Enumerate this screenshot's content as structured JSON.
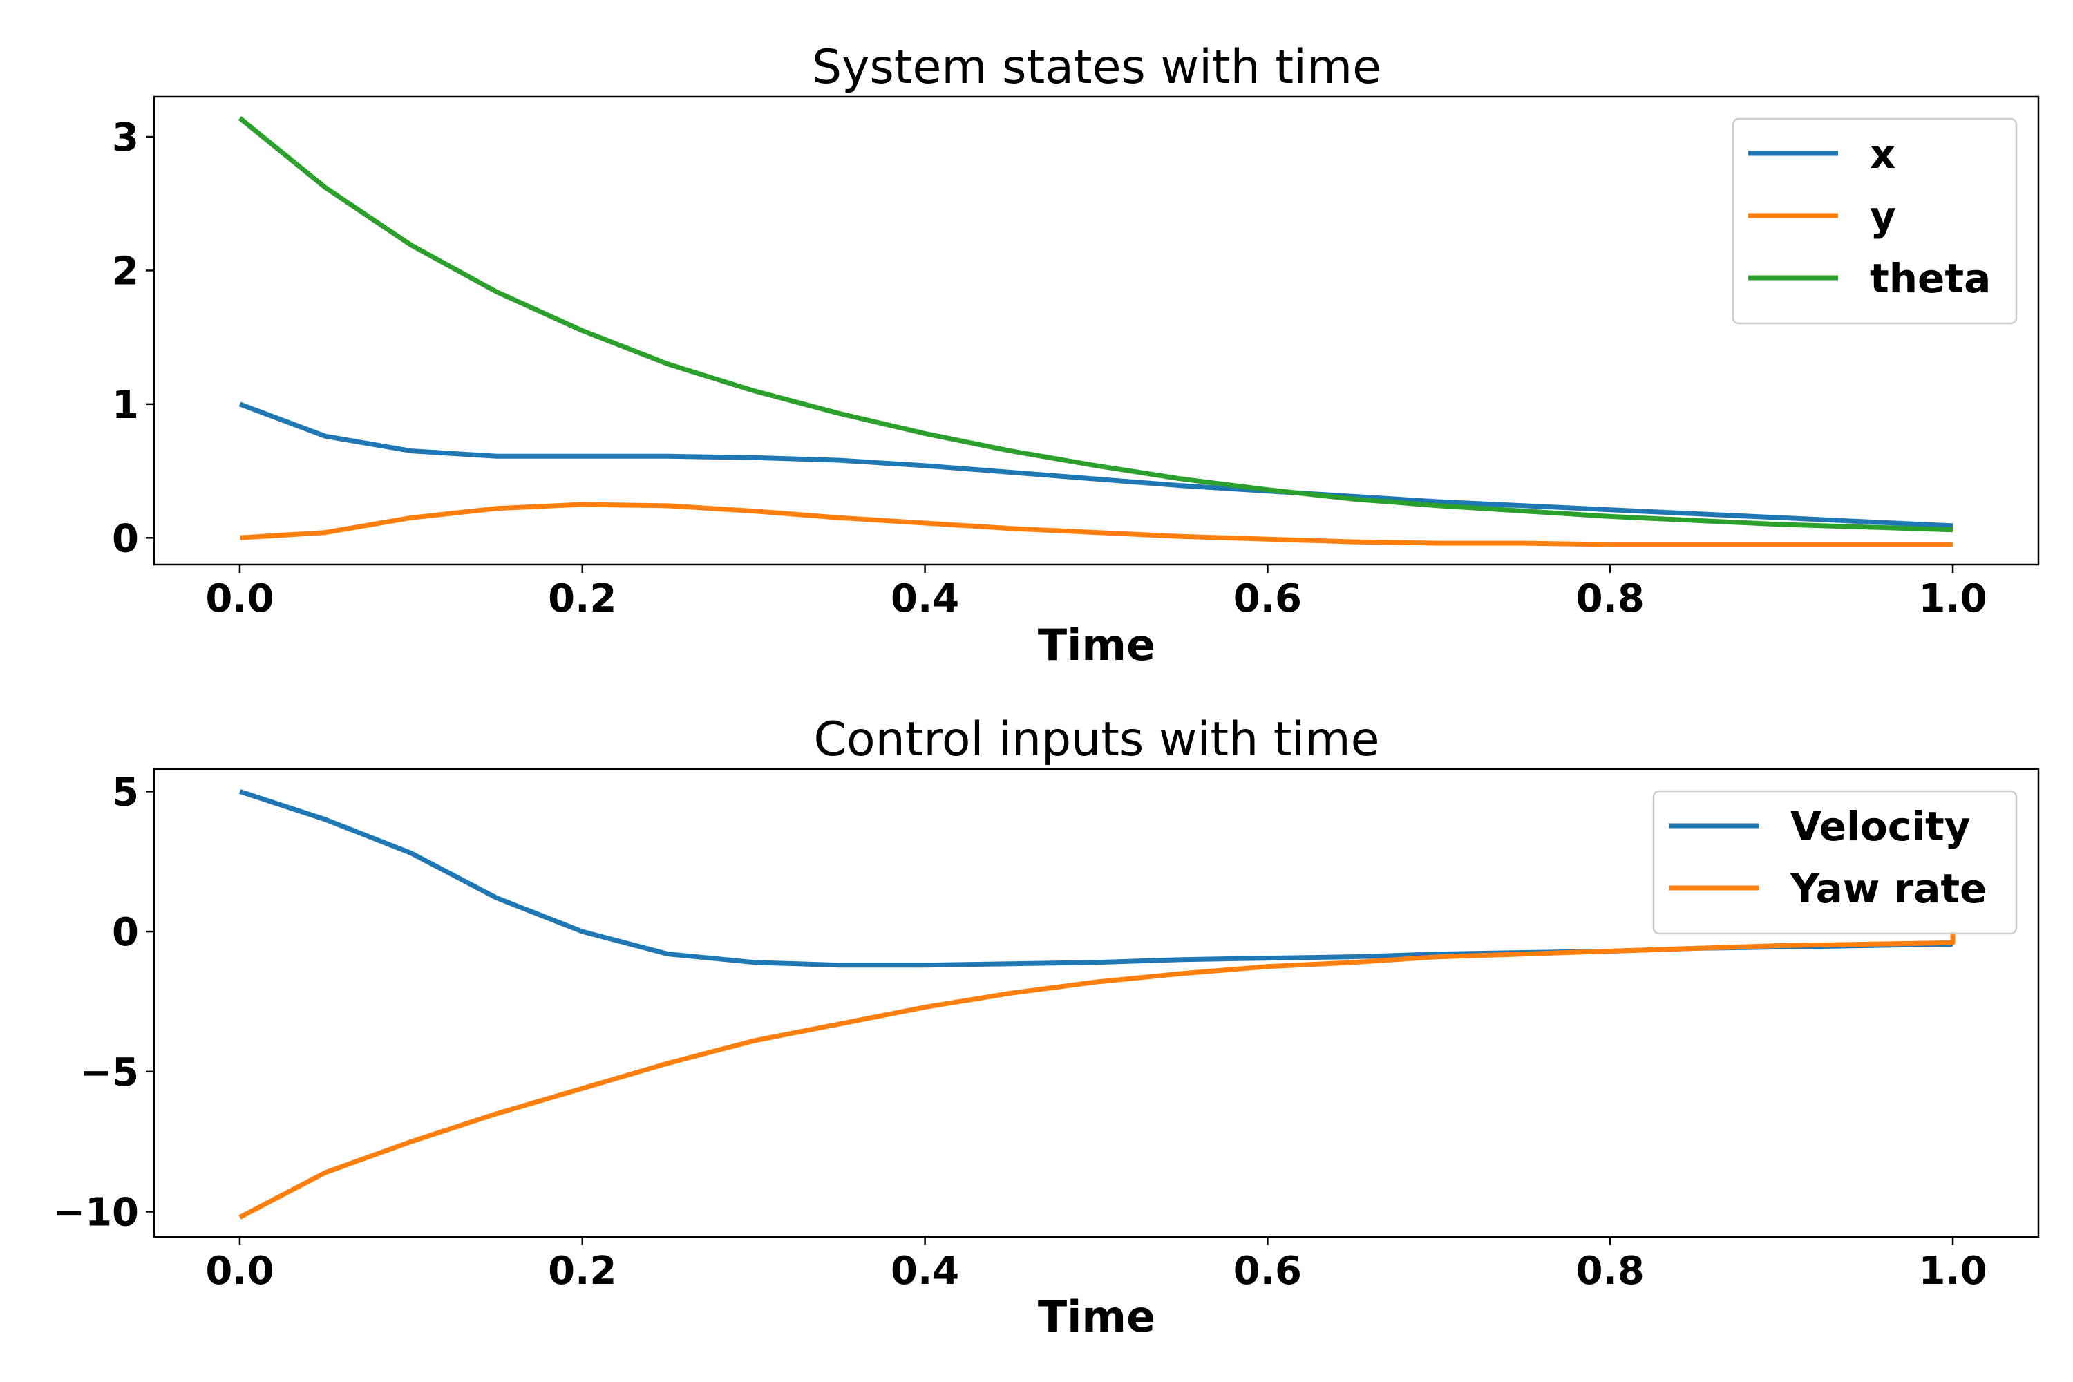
{
  "chart_data": [
    {
      "type": "line",
      "title": "System states with time",
      "xlabel": "Time",
      "ylabel": "",
      "xlim": [
        -0.05,
        1.05
      ],
      "ylim": [
        -0.2,
        3.3
      ],
      "xticks": [
        0.0,
        0.2,
        0.4,
        0.6,
        0.8,
        1.0
      ],
      "xtick_labels": [
        "0.0",
        "0.2",
        "0.4",
        "0.6",
        "0.8",
        "1.0"
      ],
      "yticks": [
        0,
        1,
        2,
        3
      ],
      "ytick_labels": [
        "0",
        "1",
        "2",
        "3"
      ],
      "legend_position": "top-right",
      "x": [
        0.0,
        0.05,
        0.1,
        0.15,
        0.2,
        0.25,
        0.3,
        0.35,
        0.4,
        0.45,
        0.5,
        0.55,
        0.6,
        0.65,
        0.7,
        0.75,
        0.8,
        0.85,
        0.9,
        0.95,
        1.0
      ],
      "series": [
        {
          "name": "x",
          "color": "#1f77b4",
          "values": [
            1.0,
            0.76,
            0.65,
            0.61,
            0.61,
            0.61,
            0.6,
            0.58,
            0.54,
            0.49,
            0.44,
            0.39,
            0.35,
            0.31,
            0.27,
            0.24,
            0.21,
            0.18,
            0.15,
            0.12,
            0.09
          ]
        },
        {
          "name": "y",
          "color": "#ff7f0e",
          "values": [
            0.0,
            0.04,
            0.15,
            0.22,
            0.25,
            0.24,
            0.2,
            0.15,
            0.11,
            0.07,
            0.04,
            0.01,
            -0.01,
            -0.03,
            -0.04,
            -0.04,
            -0.05,
            -0.05,
            -0.05,
            -0.05,
            -0.05
          ]
        },
        {
          "name": "theta",
          "color": "#2ca02c",
          "values": [
            3.14,
            2.62,
            2.19,
            1.84,
            1.55,
            1.3,
            1.1,
            0.93,
            0.78,
            0.65,
            0.54,
            0.44,
            0.36,
            0.29,
            0.24,
            0.2,
            0.16,
            0.13,
            0.1,
            0.08,
            0.06
          ]
        }
      ]
    },
    {
      "type": "line",
      "title": "Control inputs with time",
      "xlabel": "Time",
      "ylabel": "",
      "xlim": [
        -0.05,
        1.05
      ],
      "ylim": [
        -10.9,
        5.8
      ],
      "xticks": [
        0.0,
        0.2,
        0.4,
        0.6,
        0.8,
        1.0
      ],
      "xtick_labels": [
        "0.0",
        "0.2",
        "0.4",
        "0.6",
        "0.8",
        "1.0"
      ],
      "yticks": [
        5,
        0,
        -5,
        -10
      ],
      "ytick_labels": [
        "5",
        "0",
        "−5",
        "−10"
      ],
      "legend_position": "top-right",
      "x": [
        0.0,
        0.05,
        0.1,
        0.15,
        0.2,
        0.25,
        0.3,
        0.35,
        0.4,
        0.45,
        0.5,
        0.55,
        0.6,
        0.65,
        0.7,
        0.75,
        0.8,
        0.85,
        0.9,
        0.95,
        1.0
      ],
      "series": [
        {
          "name": "Velocity",
          "color": "#1f77b4",
          "values": [
            5.0,
            4.0,
            2.8,
            1.2,
            0.0,
            -0.8,
            -1.1,
            -1.2,
            -1.2,
            -1.15,
            -1.1,
            -1.0,
            -0.95,
            -0.9,
            -0.8,
            -0.75,
            -0.7,
            -0.6,
            -0.55,
            -0.5,
            -0.45
          ]
        },
        {
          "name": "Yaw rate",
          "color": "#ff7f0e",
          "values": [
            -10.2,
            -8.6,
            -7.5,
            -6.5,
            -5.6,
            -4.7,
            -3.9,
            -3.3,
            -2.7,
            -2.2,
            -1.8,
            -1.5,
            -1.25,
            -1.1,
            -0.9,
            -0.8,
            -0.7,
            -0.6,
            -0.5,
            -0.45,
            -0.4
          ],
          "end_jump": 0.0
        }
      ]
    }
  ]
}
